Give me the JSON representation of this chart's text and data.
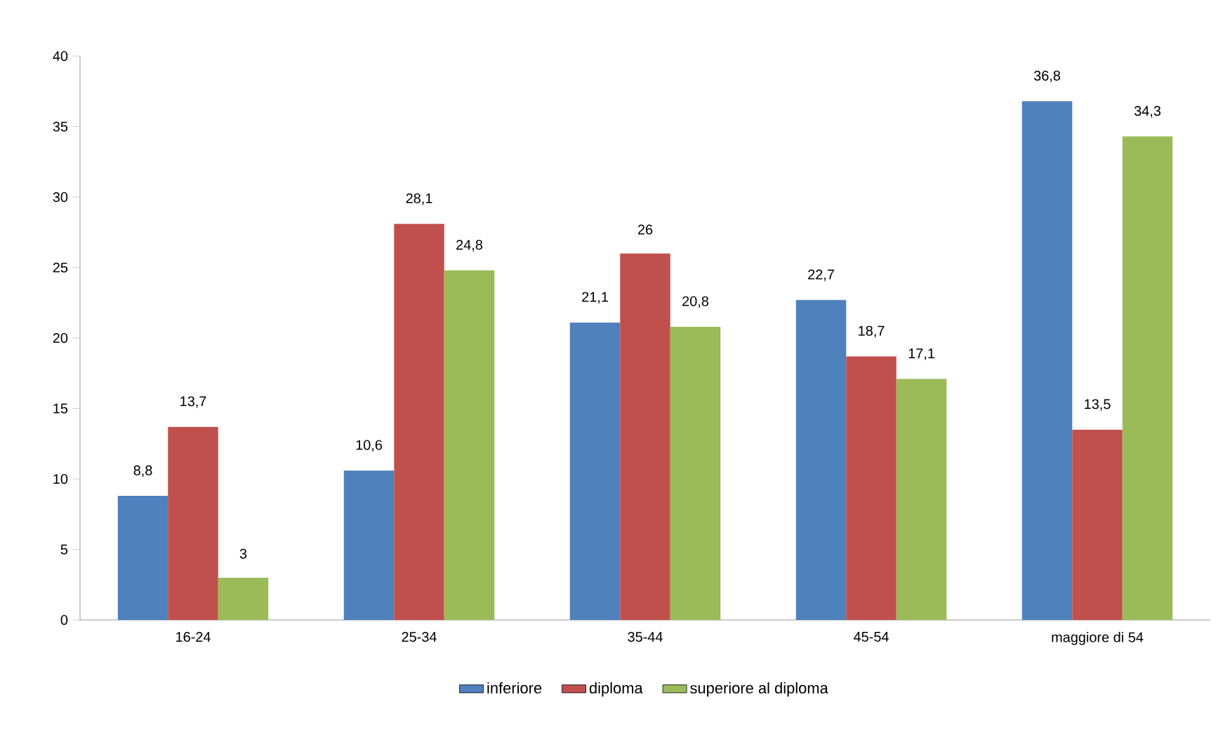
{
  "chart_data": {
    "type": "bar",
    "categories": [
      "16-24",
      "25-34",
      "35-44",
      "45-54",
      "maggiore di 54"
    ],
    "series": [
      {
        "name": "inferiore",
        "color": "#4f81bd",
        "values": [
          8.8,
          10.6,
          21.1,
          22.7,
          36.8
        ],
        "value_labels": [
          "8,8",
          "10,6",
          "21,1",
          "22,7",
          "36,8"
        ]
      },
      {
        "name": "diploma",
        "color": "#c0504d",
        "values": [
          13.7,
          28.1,
          26,
          18.7,
          13.5
        ],
        "value_labels": [
          "13,7",
          "28,1",
          "26",
          "18,7",
          "13,5"
        ]
      },
      {
        "name": "superiore al diploma",
        "color": "#9bbb59",
        "values": [
          3,
          24.8,
          20.8,
          17.1,
          34.3
        ],
        "value_labels": [
          "3",
          "24,8",
          "20,8",
          "17,1",
          "34,3"
        ]
      }
    ],
    "ylim": [
      0,
      40
    ],
    "yticks": [
      0,
      5,
      10,
      15,
      20,
      25,
      30,
      35,
      40
    ],
    "grid": false,
    "legend": "bottom"
  }
}
